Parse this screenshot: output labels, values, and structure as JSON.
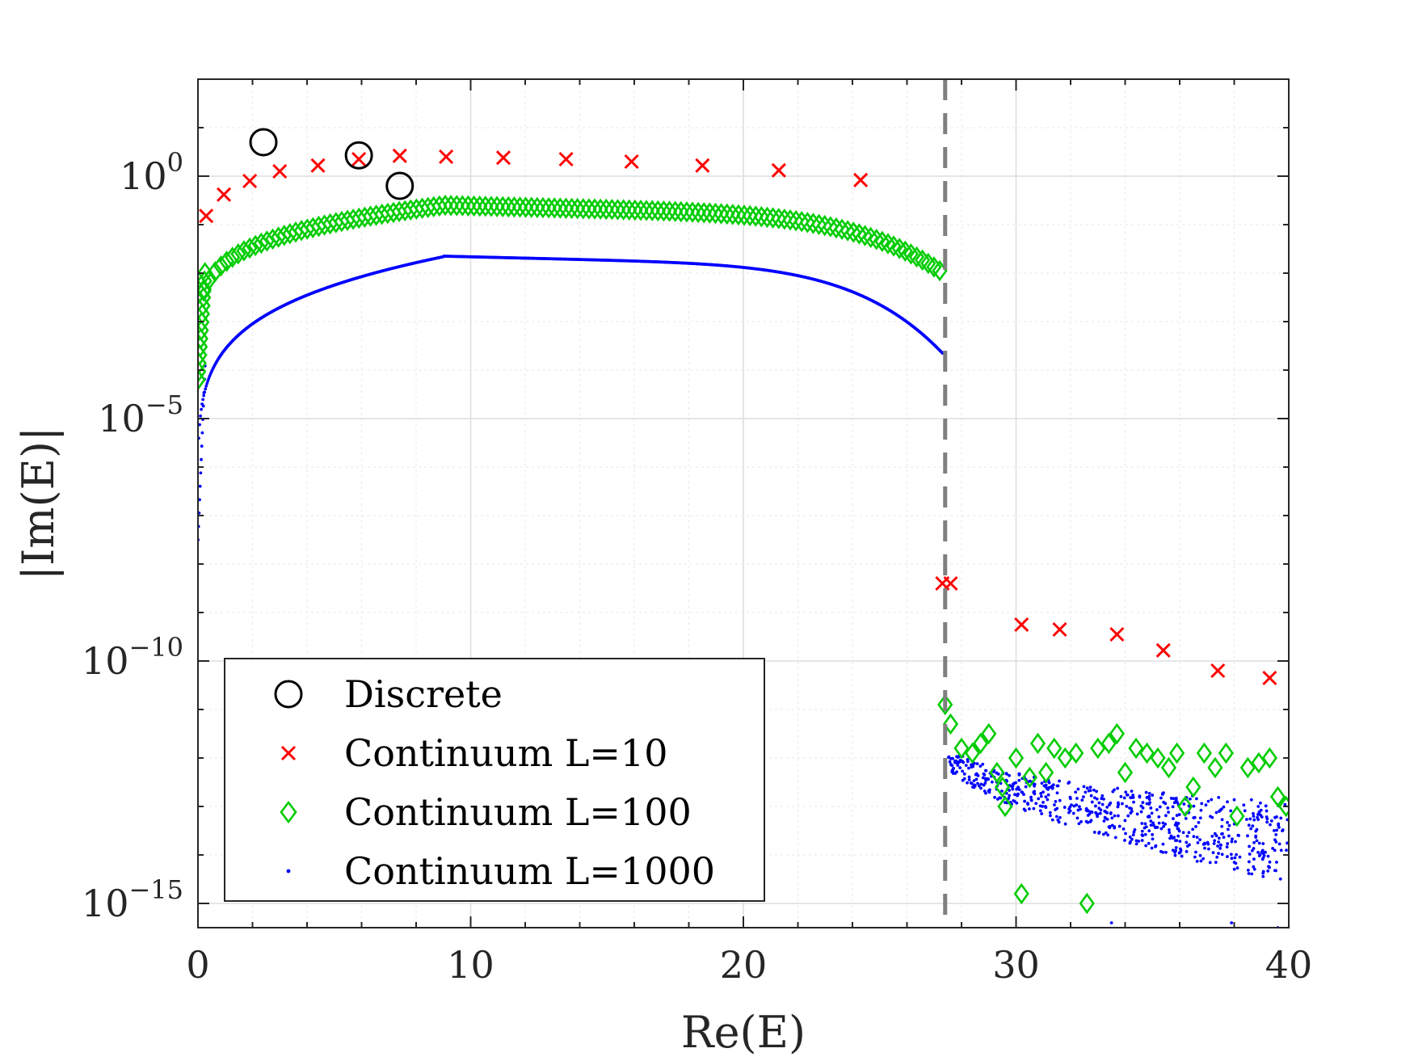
{
  "chart_data": {
    "type": "scatter",
    "xlabel": "Re(E)",
    "ylabel": "|Im(E)|",
    "yscale": "log",
    "xlim": [
      0,
      40
    ],
    "ylim_exp": [
      -15.5,
      2
    ],
    "xticks": [
      0,
      10,
      20,
      30,
      40
    ],
    "yticks_exp": [
      0,
      -5,
      -10,
      -15
    ],
    "ytick_base": "10",
    "grid": true,
    "legend_position": "bottom-left",
    "vline": {
      "x": 27.4,
      "style": "dashed",
      "color": "#7f7f7f"
    },
    "series": [
      {
        "name": "Discrete",
        "marker": "circle",
        "color": "#000000",
        "points": [
          [
            2.4,
            0.7
          ],
          [
            5.9,
            0.43
          ],
          [
            7.4,
            -0.2
          ]
        ]
      },
      {
        "name": "Continuum L=10",
        "marker": "x",
        "color": "#ff0000",
        "points": [
          [
            0.3,
            -0.82
          ],
          [
            0.95,
            -0.38
          ],
          [
            1.9,
            -0.1
          ],
          [
            3.0,
            0.1
          ],
          [
            4.4,
            0.22
          ],
          [
            5.9,
            0.35
          ],
          [
            7.4,
            0.42
          ],
          [
            9.1,
            0.4
          ],
          [
            11.2,
            0.38
          ],
          [
            13.5,
            0.35
          ],
          [
            15.9,
            0.3
          ],
          [
            18.5,
            0.22
          ],
          [
            21.3,
            0.12
          ],
          [
            24.3,
            -0.08
          ],
          [
            27.3,
            -8.4
          ],
          [
            27.6,
            -8.4
          ],
          [
            30.2,
            -9.25
          ],
          [
            31.6,
            -9.35
          ],
          [
            33.7,
            -9.45
          ],
          [
            35.4,
            -9.78
          ],
          [
            37.4,
            -10.2
          ],
          [
            39.3,
            -10.35
          ]
        ],
        "y_is_log10": true
      },
      {
        "name": "Continuum L=100",
        "marker": "diamond",
        "color": "#00cc00",
        "y_is_log10": true,
        "band": {
          "x_start": 0.0,
          "x_end": 27.2,
          "count": 130,
          "y_start_exp": -4.2,
          "y_peak_exp": -0.6,
          "y_end_exp": -1.7
        },
        "points": [
          [
            27.4,
            -10.9
          ],
          [
            27.6,
            -11.3
          ],
          [
            28.0,
            -11.8
          ],
          [
            28.4,
            -11.9
          ],
          [
            28.7,
            -11.7
          ],
          [
            29.0,
            -11.5
          ],
          [
            29.3,
            -12.3
          ],
          [
            29.5,
            -12.6
          ],
          [
            29.6,
            -13.0
          ],
          [
            30.0,
            -12.0
          ],
          [
            30.2,
            -14.8
          ],
          [
            30.5,
            -12.4
          ],
          [
            30.8,
            -11.7
          ],
          [
            31.1,
            -12.3
          ],
          [
            31.4,
            -11.8
          ],
          [
            31.8,
            -12.0
          ],
          [
            32.2,
            -11.9
          ],
          [
            32.6,
            -15.0
          ],
          [
            33.0,
            -11.8
          ],
          [
            33.4,
            -11.7
          ],
          [
            33.7,
            -11.5
          ],
          [
            34.0,
            -12.3
          ],
          [
            34.4,
            -11.8
          ],
          [
            34.8,
            -11.9
          ],
          [
            35.2,
            -12.0
          ],
          [
            35.6,
            -12.2
          ],
          [
            35.9,
            -11.9
          ],
          [
            36.2,
            -13.0
          ],
          [
            36.5,
            -12.6
          ],
          [
            36.9,
            -11.9
          ],
          [
            37.3,
            -12.2
          ],
          [
            37.7,
            -11.9
          ],
          [
            38.1,
            -13.2
          ],
          [
            38.5,
            -12.2
          ],
          [
            38.9,
            -12.1
          ],
          [
            39.3,
            -12.0
          ],
          [
            39.6,
            -12.8
          ],
          [
            39.9,
            -13.0
          ]
        ]
      },
      {
        "name": "Continuum L=1000",
        "marker": "dot",
        "color": "#0000ff",
        "y_is_log10": true,
        "band": {
          "x_start": 0.0,
          "x_end": 27.3,
          "count": 900,
          "y_start_exp": -7.5,
          "y_peak_exp": -1.65,
          "y_end_exp": -3.4
        },
        "scatter_tail": {
          "x_start": 27.5,
          "x_end": 40.0,
          "count": 650,
          "y_start_exp": -12.0,
          "y_end_exp": -14.0,
          "spread_exp": 0.6
        },
        "points": [
          [
            27.4,
            -3.8
          ],
          [
            33.5,
            -15.4
          ],
          [
            37.9,
            -15.4
          ],
          [
            39.6,
            -15.5
          ]
        ]
      }
    ]
  }
}
